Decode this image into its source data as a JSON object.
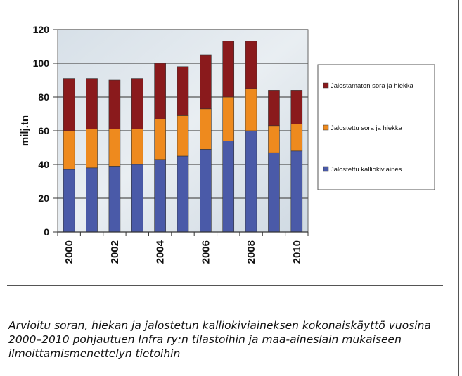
{
  "chart_data": {
    "type": "bar",
    "stacked": true,
    "x": [
      "2000",
      "2001",
      "2002",
      "2003",
      "2004",
      "2005",
      "2006",
      "2007",
      "2008",
      "2009",
      "2010"
    ],
    "xtick_labels": [
      "2000",
      "2002",
      "2004",
      "2006",
      "2008",
      "2010"
    ],
    "ylabel": "milj.tn",
    "ylim": [
      0,
      120
    ],
    "yticks": [
      0,
      20,
      40,
      60,
      80,
      100,
      120
    ],
    "grid": true,
    "legend_position": "right",
    "series": [
      {
        "name": "Jalostettu kalliokiviaines",
        "color": "#4a5aa8",
        "values": [
          37,
          38,
          39,
          40,
          43,
          45,
          49,
          54,
          60,
          47,
          48
        ]
      },
      {
        "name": "Jalostettu sora ja hiekka",
        "color": "#ee8a1e",
        "values": [
          23,
          23,
          22,
          21,
          24,
          24,
          24,
          26,
          25,
          16,
          16
        ]
      },
      {
        "name": "Jalostamaton sora ja hiekka",
        "color": "#8a1a1c",
        "values": [
          31,
          30,
          29,
          30,
          33,
          29,
          32,
          33,
          28,
          21,
          20
        ]
      }
    ]
  },
  "caption": "Arvioitu soran, hiekan ja jalostetun kalliokiviaineksen kokonaiskäyttö vuosina 2000–2010 pohjautuen Infra ry:n tilastoihin ja maa-aineslain mukaiseen ilmoittamismenettelyn tietoihin"
}
